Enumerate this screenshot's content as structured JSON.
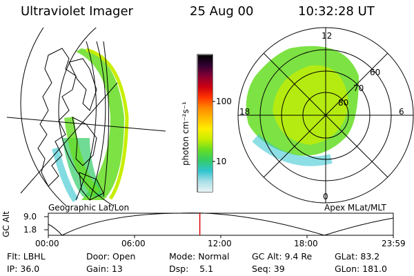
{
  "header": {
    "instrument": "Ultraviolet Imager",
    "date": "25 Aug 00",
    "time": "10:32:28 UT"
  },
  "left_panel": {
    "caption": "Geographic Lat/Lon"
  },
  "right_panel": {
    "caption": "Apex MLat/MLT",
    "mlt_labels": [
      "12",
      "18",
      "6",
      "0"
    ],
    "lat_labels": [
      "60",
      "70",
      "80"
    ]
  },
  "colorbar": {
    "unit_label": "photon cm⁻²s⁻¹",
    "tick_labels": [
      "100",
      "10"
    ],
    "colors": [
      "#e8f4f6",
      "#a8dfe6",
      "#2fc4cf",
      "#33cc66",
      "#66dd22",
      "#c8ee00",
      "#ffee00",
      "#ffbb00",
      "#ff8800",
      "#ff3300",
      "#cc0011",
      "#880033",
      "#330033",
      "#000000"
    ]
  },
  "altitude_track": {
    "axis_label": "GC Alt",
    "y_ticks": [
      "9.0",
      "1.8"
    ],
    "x_ticks": [
      "00:00",
      "06:00",
      "12:00",
      "18:00",
      "23:59"
    ],
    "current_marker_hours": 10.54,
    "marker_color": "#dd0000"
  },
  "status": {
    "row1": {
      "filter": "Flt: LBHL",
      "door": "Door: Open",
      "mode": "Mode: Normal",
      "gc_alt": "GC Alt: 9.4 Re",
      "glat": "GLat: 83.2"
    },
    "row2": {
      "ip": "IP: 36.0",
      "gain": "Gain: 13",
      "dsp": "Dsp:    5.1",
      "seq": "Seq: 39",
      "glon": "GLon: 181.0"
    }
  }
}
